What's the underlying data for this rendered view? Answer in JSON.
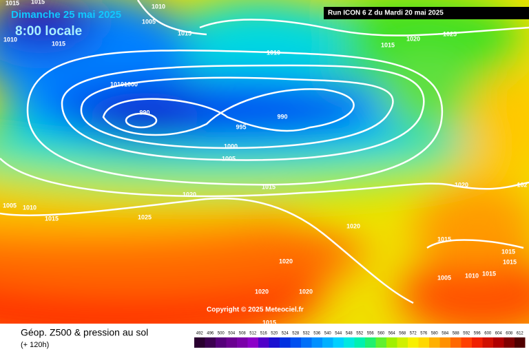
{
  "header": {
    "date": "Dimanche 25 mai 2025",
    "time": "8:00 locale",
    "run": "Run ICON 6 Z du Mardi 20 mai 2025"
  },
  "copyright": "Copyright © 2025 Meteociel.fr",
  "footer": {
    "title": "Géop. Z500 & pression au sol",
    "subtitle": "(+ 120h)"
  },
  "isobar_labels": [
    "1015",
    "1015",
    "1010",
    "1005",
    "1015",
    "1010",
    "1015",
    "1010",
    "1015",
    "1020",
    "1025",
    "1010",
    "1000",
    "990",
    "995",
    "990",
    "1000",
    "1005",
    "1015",
    "1020",
    "102",
    "1020",
    "1005",
    "1010",
    "1015",
    "1025",
    "1020",
    "1015",
    "1015",
    "1020",
    "1015",
    "1010",
    "1015",
    "1005",
    "1020",
    "1020",
    "1015"
  ],
  "scale": {
    "labels": [
      492,
      496,
      500,
      504,
      508,
      512,
      516,
      520,
      524,
      528,
      532,
      536,
      540,
      544,
      548,
      552,
      556,
      560,
      564,
      568,
      572,
      576,
      580,
      584,
      588,
      592,
      596,
      600,
      604,
      608,
      612
    ],
    "colors": [
      "#2a0030",
      "#3c0050",
      "#55007a",
      "#6a0090",
      "#7a00a8",
      "#8c00c8",
      "#5000c8",
      "#1a10d0",
      "#0030e0",
      "#0050f0",
      "#0070f8",
      "#0090ff",
      "#00b0ff",
      "#00d0ff",
      "#00e8e0",
      "#00f0b0",
      "#20f070",
      "#60f030",
      "#a0f000",
      "#d0f000",
      "#f8f000",
      "#ffd800",
      "#ffb000",
      "#ff9000",
      "#ff6800",
      "#ff4000",
      "#f02000",
      "#d01000",
      "#b00000",
      "#800000",
      "#500000"
    ]
  }
}
